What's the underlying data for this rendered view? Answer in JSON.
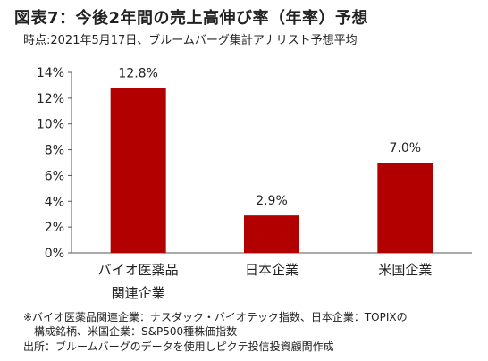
{
  "header": {
    "title": "図表7：今後2年間の売上高伸び率（年率）予想",
    "subtitle": "時点:2021年5月17日、ブルームバーグ集計アナリスト予想平均"
  },
  "chart_data": {
    "type": "bar",
    "categories": [
      [
        "バイオ医薬品",
        "関連企業"
      ],
      [
        "日本企業"
      ],
      [
        "米国企業"
      ]
    ],
    "values": [
      12.8,
      2.9,
      7.0
    ],
    "value_labels": [
      "12.8%",
      "2.9%",
      "7.0%"
    ],
    "y_ticks": [
      "0%",
      "2%",
      "4%",
      "6%",
      "8%",
      "10%",
      "12%",
      "14%"
    ],
    "ylim": [
      0,
      14
    ],
    "grid": false,
    "legend": "none",
    "bar_color": "#b20000"
  },
  "footer": {
    "note_line1": "※バイオ医薬品関連企業：ナスダック・バイオテック指数、日本企業：TOPIXの",
    "note_line2": "構成銘柄、米国企業：S&P500種株価指数",
    "source": "出所：ブルームバーグのデータを使用しピクテ投信投資顧問作成"
  }
}
